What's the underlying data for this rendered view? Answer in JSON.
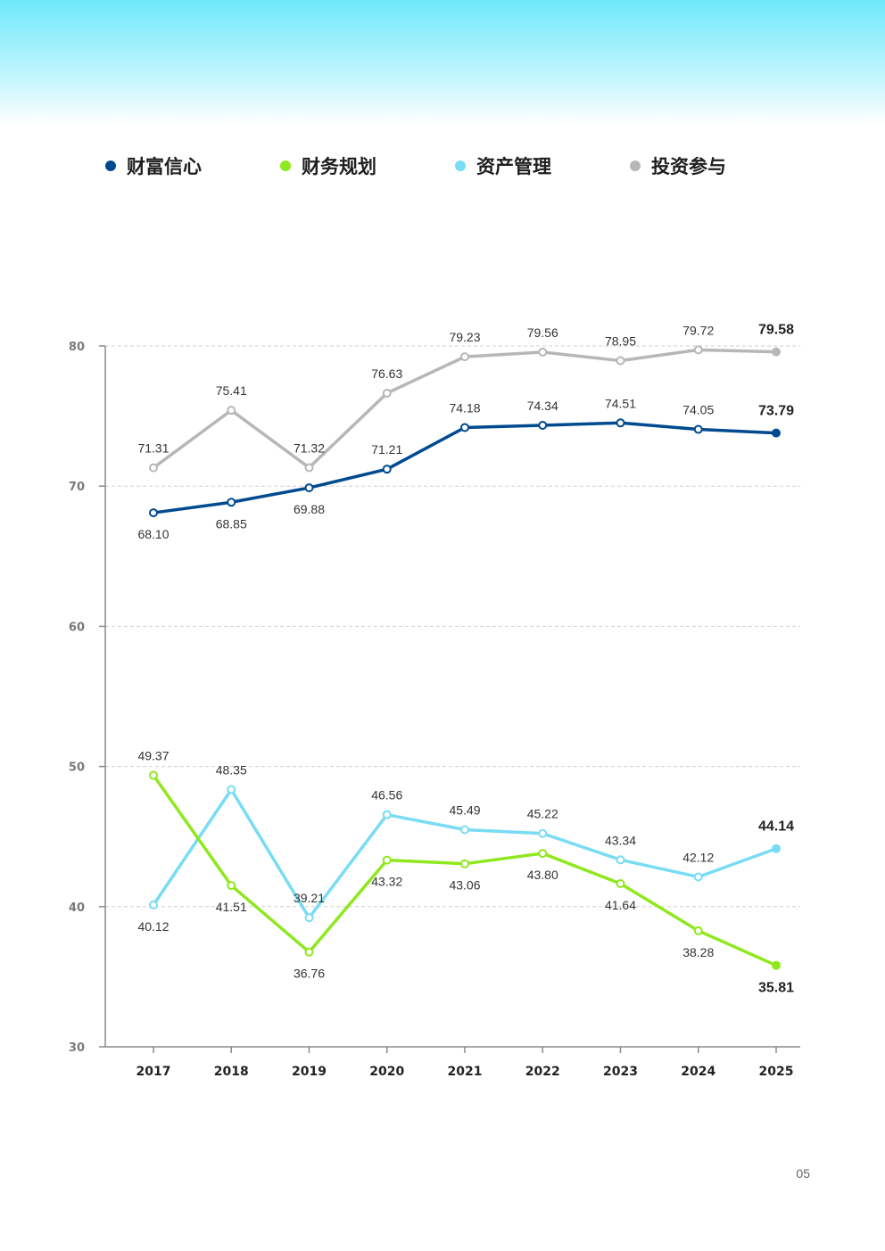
{
  "page": {
    "number": "05"
  },
  "colors": {
    "band_top": "#6fe9fb",
    "axis": "#8a8a8a",
    "grid": "#cfcfcf"
  },
  "legend": [
    {
      "name": "财富信心",
      "color": "#004a8f"
    },
    {
      "name": "财务规划",
      "color": "#8fe81e"
    },
    {
      "name": "资产管理",
      "color": "#78dcf5"
    },
    {
      "name": "投资参与",
      "color": "#b7b7b7"
    }
  ],
  "chart_data": {
    "type": "line",
    "x": [
      "2017",
      "2018",
      "2019",
      "2020",
      "2021",
      "2022",
      "2023",
      "2024",
      "2025"
    ],
    "ylim": [
      30,
      80
    ],
    "yticks": [
      30,
      40,
      50,
      60,
      70,
      80
    ],
    "grid": true,
    "legend_position": "top",
    "series": [
      {
        "name": "投资参与",
        "color": "#b7b7b7",
        "values": [
          71.31,
          75.41,
          71.32,
          76.63,
          79.23,
          79.56,
          78.95,
          79.72,
          79.58
        ],
        "labels": [
          "71.31",
          "75.41",
          "71.32",
          "76.63",
          "79.23",
          "79.56",
          "78.95",
          "79.72",
          "79.58"
        ],
        "label_pos": [
          "above",
          "above",
          "above",
          "above",
          "above",
          "above",
          "above",
          "above",
          "above"
        ]
      },
      {
        "name": "财富信心",
        "color": "#004a8f",
        "values": [
          68.1,
          68.85,
          69.88,
          71.21,
          74.18,
          74.34,
          74.51,
          74.05,
          73.79
        ],
        "labels": [
          "68.10",
          "68.85",
          "69.88",
          "71.21",
          "74.18",
          "74.34",
          "74.51",
          "74.05",
          "73.79"
        ],
        "label_pos": [
          "below",
          "below",
          "below",
          "above",
          "above",
          "above",
          "above",
          "above",
          "above"
        ]
      },
      {
        "name": "资产管理",
        "color": "#78dcf5",
        "values": [
          40.12,
          48.35,
          39.21,
          46.56,
          45.49,
          45.22,
          43.34,
          42.12,
          44.14
        ],
        "labels": [
          "40.12",
          "48.35",
          "39.21",
          "46.56",
          "45.49",
          "45.22",
          "43.34",
          "42.12",
          "44.14"
        ],
        "label_pos": [
          "below",
          "above",
          "above",
          "above",
          "above",
          "above",
          "above",
          "above",
          "above"
        ]
      },
      {
        "name": "财务规划",
        "color": "#8fe81e",
        "values": [
          49.37,
          41.51,
          36.76,
          43.32,
          43.06,
          43.8,
          41.64,
          38.28,
          35.81
        ],
        "labels": [
          "49.37",
          "41.51",
          "36.76",
          "43.32",
          "43.06",
          "43.80",
          "41.64",
          "38.28",
          "35.81"
        ],
        "label_pos": [
          "above",
          "below",
          "below",
          "below",
          "below",
          "below",
          "below",
          "below",
          "below"
        ]
      }
    ]
  }
}
